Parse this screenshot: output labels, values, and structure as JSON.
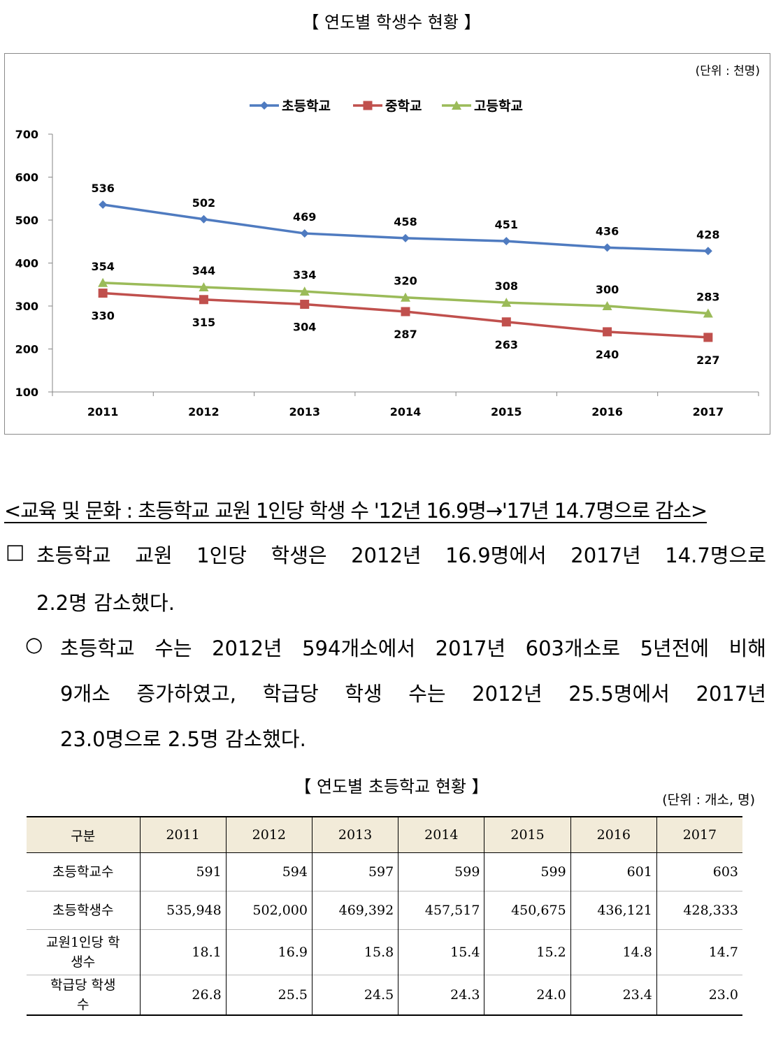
{
  "chart_title": "【 연도별 학생수 현황 】",
  "chart_data": {
    "type": "line",
    "title": "",
    "unit_note": "(단위 : 천명)",
    "categories": [
      "2011",
      "2012",
      "2013",
      "2014",
      "2015",
      "2016",
      "2017"
    ],
    "ylim": [
      100,
      700
    ],
    "yticks": [
      "100",
      "200",
      "300",
      "400",
      "500",
      "600",
      "700"
    ],
    "legend_position": "top-center",
    "grid": false,
    "series": [
      {
        "name": "초등학교",
        "color": "#4f7bc0",
        "marker": "diamond",
        "values": [
          536,
          502,
          469,
          458,
          451,
          436,
          428
        ]
      },
      {
        "name": "중학교",
        "color": "#c0504d",
        "marker": "square",
        "values": [
          330,
          315,
          304,
          287,
          263,
          240,
          227
        ]
      },
      {
        "name": "고등학교",
        "color": "#9bbb59",
        "marker": "triangle",
        "values": [
          354,
          344,
          334,
          320,
          308,
          300,
          283
        ]
      }
    ]
  },
  "section_heading": "<교육 및 문화 : 초등학교 교원 1인당 학생 수 '12년 16.9명→'17년 14.7명으로 감소>",
  "paragraph1": {
    "bullet": "□",
    "line1": [
      "초등학교",
      "교원",
      "1인당",
      "학생은",
      "2012년",
      "16.9명에서",
      "2017년",
      "14.7명으로"
    ],
    "line2": "2.2명 감소했다."
  },
  "paragraph2": {
    "bullet": "○",
    "line1": [
      "초등학교",
      "수는",
      "2012년",
      "594개소에서",
      "2017년",
      "603개소로",
      "5년전에",
      "비해"
    ],
    "line2": [
      "9개소",
      "증가하였고,",
      "학급당",
      "학생",
      "수는",
      "2012년",
      "25.5명에서",
      "2017년"
    ],
    "line3": "23.0명으로 2.5명 감소했다."
  },
  "table": {
    "title": "【 연도별 초등학교 현황 】",
    "unit": "(단위 : 개소, 명)",
    "headers": [
      "구분",
      "2011",
      "2012",
      "2013",
      "2014",
      "2015",
      "2016",
      "2017"
    ],
    "rows": [
      {
        "label": "초등학교수",
        "values": [
          "591",
          "594",
          "597",
          "599",
          "599",
          "601",
          "603"
        ]
      },
      {
        "label": "초등학생수",
        "values": [
          "535,948",
          "502,000",
          "469,392",
          "457,517",
          "450,675",
          "436,121",
          "428,333"
        ]
      },
      {
        "label": "교원1인당 학생수",
        "values": [
          "18.1",
          "16.9",
          "15.8",
          "15.4",
          "15.2",
          "14.8",
          "14.7"
        ]
      },
      {
        "label": "학급당 학생수",
        "values": [
          "26.8",
          "25.5",
          "24.5",
          "24.3",
          "24.0",
          "23.4",
          "23.0"
        ]
      }
    ]
  }
}
